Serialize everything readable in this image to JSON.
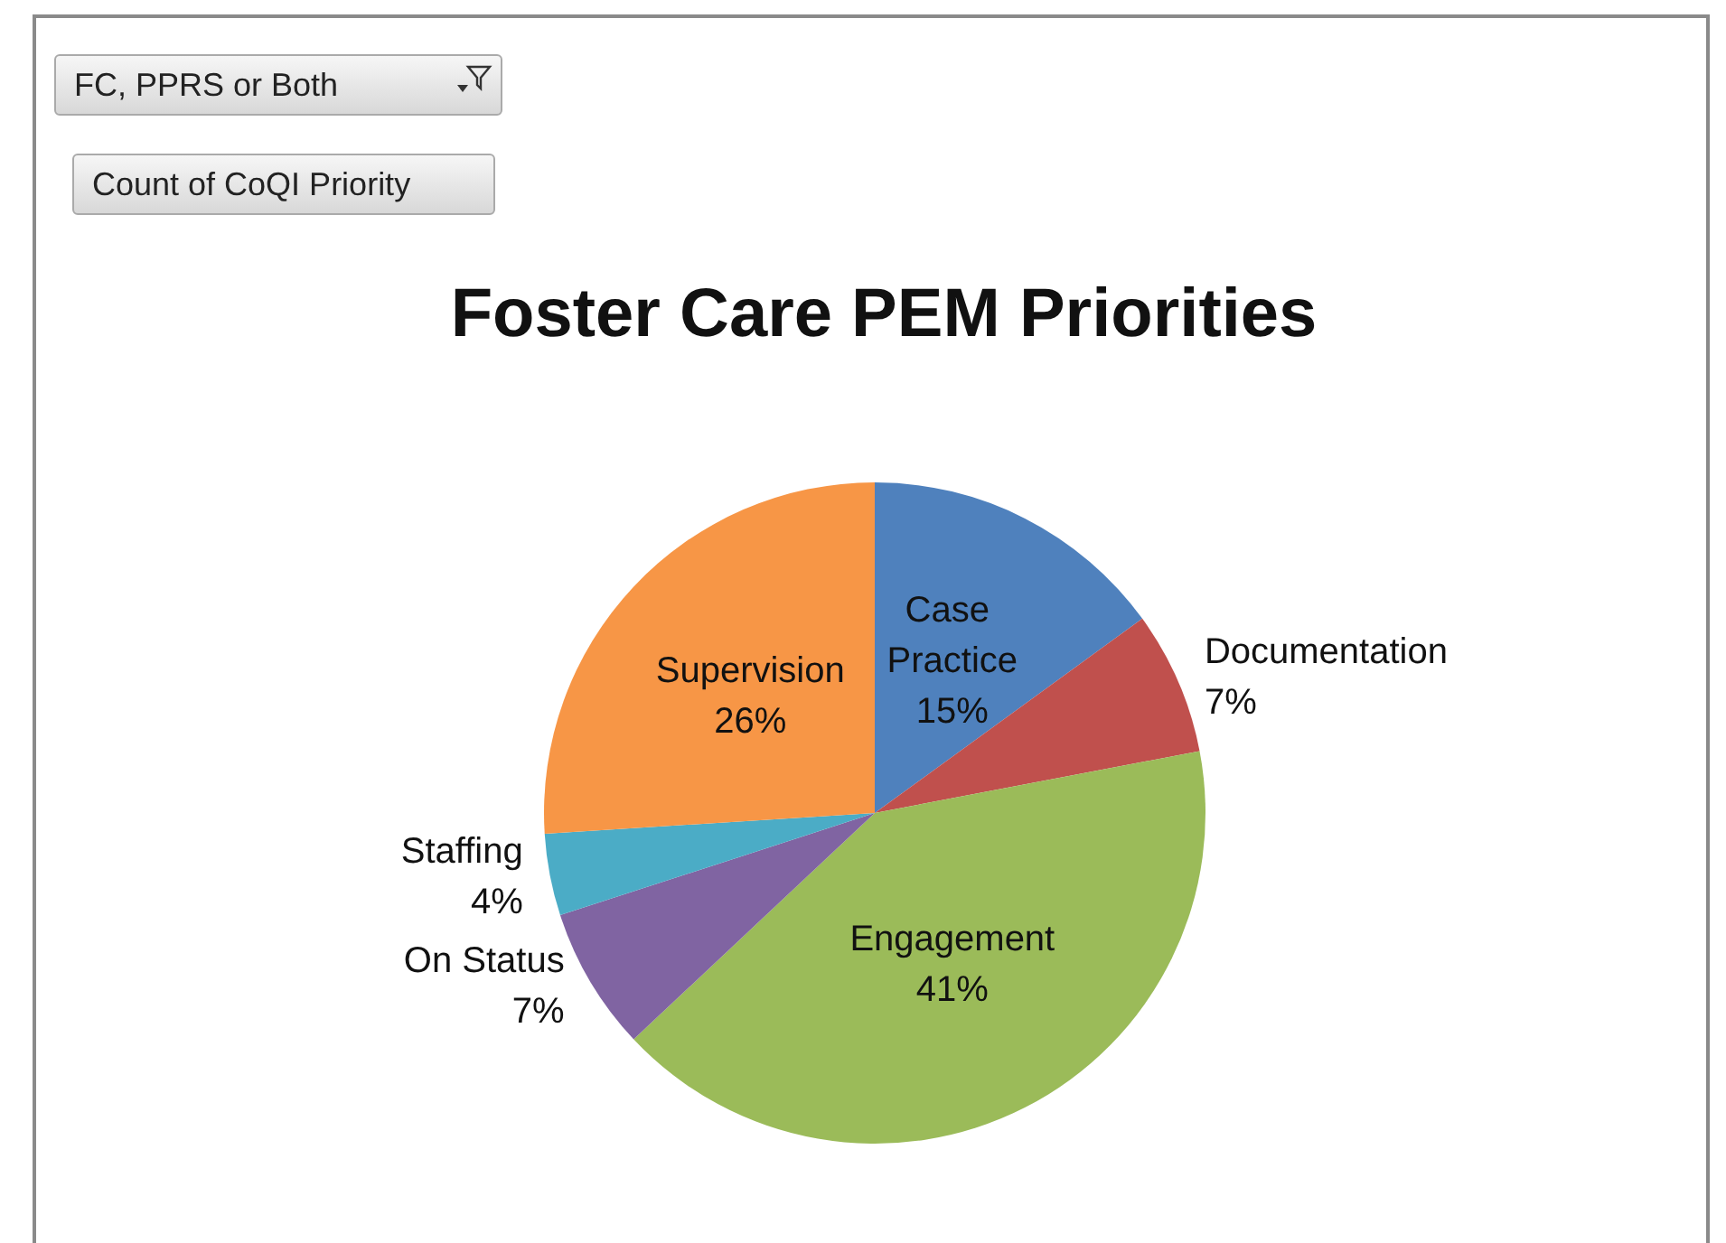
{
  "chart_data": {
    "type": "pie",
    "title": "Foster Care PEM Priorities",
    "categories": [
      "Case Practice",
      "Documentation",
      "Engagement",
      "On Status",
      "Staffing",
      "Supervision"
    ],
    "values": [
      15,
      7,
      41,
      7,
      4,
      26
    ],
    "colors": [
      "#4f81bd",
      "#c0504d",
      "#9bbb59",
      "#8064a2",
      "#4bacc6",
      "#f79646"
    ],
    "value_labels": [
      "15%",
      "7%",
      "41%",
      "7%",
      "4%",
      "26%"
    ],
    "annotations": [
      "FC, PPRS or Both",
      "Count of CoQI Priority"
    ]
  }
}
